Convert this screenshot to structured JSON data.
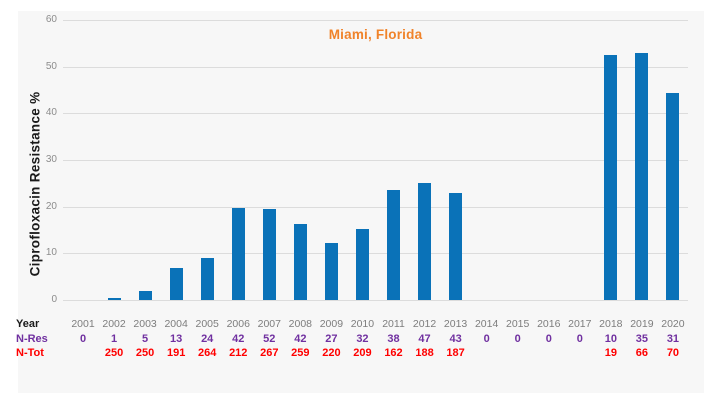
{
  "title": "Miami, Florida",
  "y_axis": {
    "label": "Ciprofloxacin Resistance %",
    "ticks": [
      0,
      10,
      20,
      30,
      40,
      50,
      60
    ],
    "max": 60
  },
  "table_row_labels": {
    "year": "Year",
    "n_res": "N-Res",
    "n_tot": "N-Tot"
  },
  "colors": {
    "bar": "#0a72b8",
    "title": "#f0832a",
    "n_res_text": "#7030a0",
    "n_tot_text": "#ff0000",
    "year_text": "#7d7d7d",
    "tick_text": "#8c8c8c",
    "gridline": "#dcdcdc",
    "plot_background": "#f7f7f7"
  },
  "chart_data": {
    "type": "bar",
    "title": "Miami, Florida",
    "ylabel": "Ciprofloxacin Resistance %",
    "xlabel": "Year",
    "ylim": [
      0,
      60
    ],
    "yticks": [
      0,
      10,
      20,
      30,
      40,
      50,
      60
    ],
    "grid": true,
    "legend": false,
    "categories": [
      "2001",
      "2002",
      "2003",
      "2004",
      "2005",
      "2006",
      "2007",
      "2008",
      "2009",
      "2010",
      "2011",
      "2012",
      "2013",
      "2014",
      "2015",
      "2016",
      "2017",
      "2018",
      "2019",
      "2020"
    ],
    "series": [
      {
        "name": "Ciprofloxacin Resistance %",
        "values": [
          null,
          0.4,
          2.0,
          6.8,
          9.1,
          19.8,
          19.5,
          16.2,
          12.3,
          15.3,
          23.5,
          25.0,
          23.0,
          null,
          null,
          null,
          null,
          52.6,
          53.0,
          44.3
        ]
      },
      {
        "name": "N-Res",
        "values": [
          0,
          1,
          5,
          13,
          24,
          42,
          52,
          42,
          27,
          32,
          38,
          47,
          43,
          0,
          0,
          0,
          0,
          10,
          35,
          31
        ]
      },
      {
        "name": "N-Tot",
        "values": [
          null,
          250,
          250,
          191,
          264,
          212,
          267,
          259,
          220,
          209,
          162,
          188,
          187,
          null,
          null,
          null,
          null,
          19,
          66,
          70
        ]
      }
    ]
  }
}
